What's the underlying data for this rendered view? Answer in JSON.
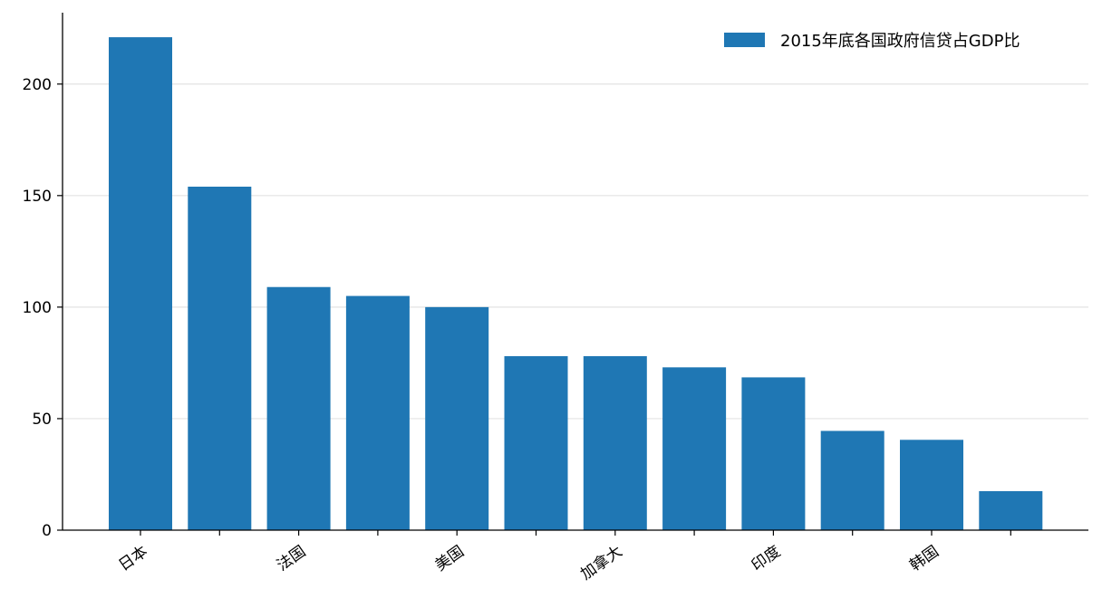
{
  "chart_data": {
    "type": "bar",
    "categories": [
      "日本",
      "",
      "法国",
      "",
      "美国",
      "",
      "加拿大",
      "",
      "印度",
      "",
      "韩国",
      ""
    ],
    "series": [
      {
        "name": "2015年底各国政府信贷占GDP比",
        "color": "#1f77b4",
        "values": [
          221,
          154,
          109,
          105,
          100,
          78,
          78,
          73,
          68.5,
          44.5,
          40.5,
          17.5
        ]
      }
    ],
    "title": "",
    "xlabel": "",
    "ylabel": "",
    "ylim": [
      0,
      232
    ],
    "yticks": [
      0,
      50,
      100,
      150,
      200
    ],
    "grid": "y",
    "legend_position": "top-right",
    "colors": {
      "bar": "#1f77b4",
      "grid": "#e3e3e3",
      "axis": "#000000"
    }
  }
}
